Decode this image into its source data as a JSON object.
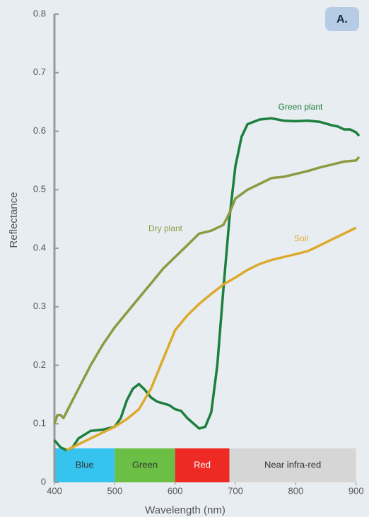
{
  "chart_data": {
    "type": "line",
    "badge": "A.",
    "x_label": "Wavelength (nm)",
    "y_label": "Reflectance",
    "xlim": [
      400,
      905
    ],
    "ylim": [
      0,
      0.8
    ],
    "xticks": [
      400,
      500,
      600,
      700,
      800,
      900
    ],
    "yticks": [
      0,
      0.1,
      0.2,
      0.3,
      0.4,
      0.5,
      0.6,
      0.7,
      0.8
    ],
    "bands": [
      {
        "label": "Blue",
        "start": 400,
        "end": 500,
        "color": "#36c3ee"
      },
      {
        "label": "Green",
        "start": 500,
        "end": 600,
        "color": "#6cbf45"
      },
      {
        "label": "Red",
        "start": 600,
        "end": 690,
        "color": "#ee2a24"
      },
      {
        "label": "Near infra-red",
        "start": 690,
        "end": 900,
        "color": "#d6d6d6"
      }
    ],
    "series": [
      {
        "name": "Green plant",
        "color": "#1d7f3d",
        "x": [
          400,
          410,
          420,
          430,
          440,
          460,
          480,
          500,
          510,
          520,
          530,
          540,
          550,
          560,
          570,
          590,
          600,
          610,
          620,
          640,
          650,
          660,
          670,
          680,
          690,
          700,
          710,
          720,
          740,
          760,
          780,
          800,
          820,
          840,
          860,
          870,
          880,
          890,
          900,
          905
        ],
        "values": [
          0.072,
          0.06,
          0.055,
          0.06,
          0.075,
          0.088,
          0.09,
          0.095,
          0.11,
          0.14,
          0.16,
          0.168,
          0.158,
          0.145,
          0.138,
          0.132,
          0.125,
          0.122,
          0.11,
          0.092,
          0.095,
          0.12,
          0.2,
          0.33,
          0.45,
          0.54,
          0.59,
          0.612,
          0.62,
          0.622,
          0.618,
          0.617,
          0.618,
          0.616,
          0.61,
          0.608,
          0.603,
          0.603,
          0.598,
          0.592
        ]
      },
      {
        "name": "Dry plant",
        "color": "#8c9a42",
        "x": [
          400,
          405,
          410,
          415,
          420,
          440,
          460,
          480,
          500,
          520,
          540,
          560,
          580,
          600,
          620,
          640,
          660,
          680,
          690,
          700,
          720,
          740,
          760,
          780,
          800,
          820,
          840,
          860,
          880,
          900,
          905
        ],
        "values": [
          0.1,
          0.115,
          0.115,
          0.11,
          0.12,
          0.16,
          0.2,
          0.235,
          0.265,
          0.29,
          0.315,
          0.34,
          0.365,
          0.385,
          0.405,
          0.425,
          0.43,
          0.44,
          0.46,
          0.485,
          0.5,
          0.51,
          0.52,
          0.522,
          0.527,
          0.532,
          0.538,
          0.543,
          0.548,
          0.55,
          0.556
        ]
      },
      {
        "name": "Soil",
        "color": "#dcaa2c",
        "x": [
          420,
          440,
          460,
          480,
          500,
          520,
          540,
          560,
          580,
          600,
          620,
          640,
          660,
          680,
          700,
          720,
          740,
          760,
          780,
          800,
          820,
          840,
          860,
          880,
          900
        ],
        "values": [
          0.055,
          0.065,
          0.075,
          0.085,
          0.095,
          0.108,
          0.125,
          0.16,
          0.21,
          0.26,
          0.285,
          0.305,
          0.322,
          0.338,
          0.35,
          0.363,
          0.373,
          0.38,
          0.385,
          0.39,
          0.395,
          0.405,
          0.415,
          0.425,
          0.435
        ]
      }
    ]
  }
}
